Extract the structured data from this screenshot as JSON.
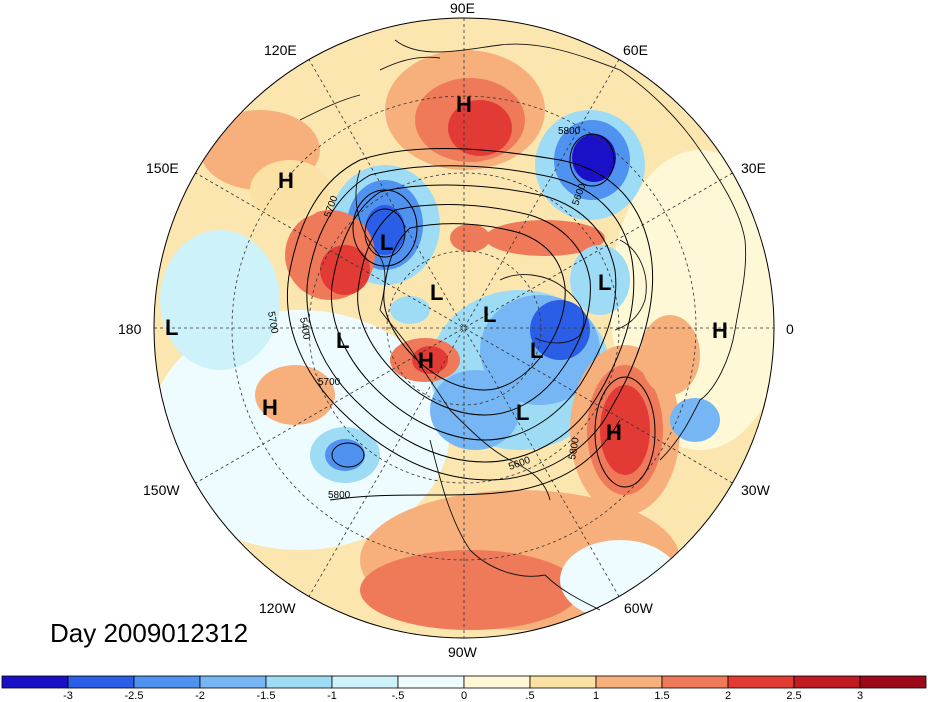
{
  "title": "Day 2009012312",
  "longitude_labels": [
    "90E",
    "60E",
    "30E",
    "0",
    "30W",
    "60W",
    "90W",
    "120W",
    "150W",
    "180",
    "150E",
    "120E"
  ],
  "pressure_centers": [
    {
      "label": "H",
      "lon": "95E-region"
    },
    {
      "label": "H"
    },
    {
      "label": "L"
    },
    {
      "label": "L"
    },
    {
      "label": "L"
    },
    {
      "label": "L"
    },
    {
      "label": "L"
    },
    {
      "label": "L"
    },
    {
      "label": "H"
    },
    {
      "label": "L"
    },
    {
      "label": "L"
    },
    {
      "label": "H"
    },
    {
      "label": "H"
    },
    {
      "label": "L"
    },
    {
      "label": "H"
    }
  ],
  "contour_labels": [
    "5800",
    "5600",
    "5700",
    "5400",
    "5700",
    "5600",
    "5800",
    "5800",
    "5700"
  ],
  "colorbar": {
    "tick_labels": [
      "-3",
      "-2.5",
      "-2",
      "-1.5",
      "-1",
      "-.5",
      "0",
      ".5",
      "1",
      "1.5",
      "2",
      "2.5",
      "3"
    ],
    "colors": [
      "#1a10c8",
      "#2a5ee6",
      "#4f92ef",
      "#76b6f4",
      "#9edcf6",
      "#cdf2fa",
      "#eefcff",
      "#fff8d6",
      "#fbe1a4",
      "#f7b07c",
      "#ef7a5a",
      "#e23b36",
      "#c01a22",
      "#9b0a1a"
    ]
  }
}
